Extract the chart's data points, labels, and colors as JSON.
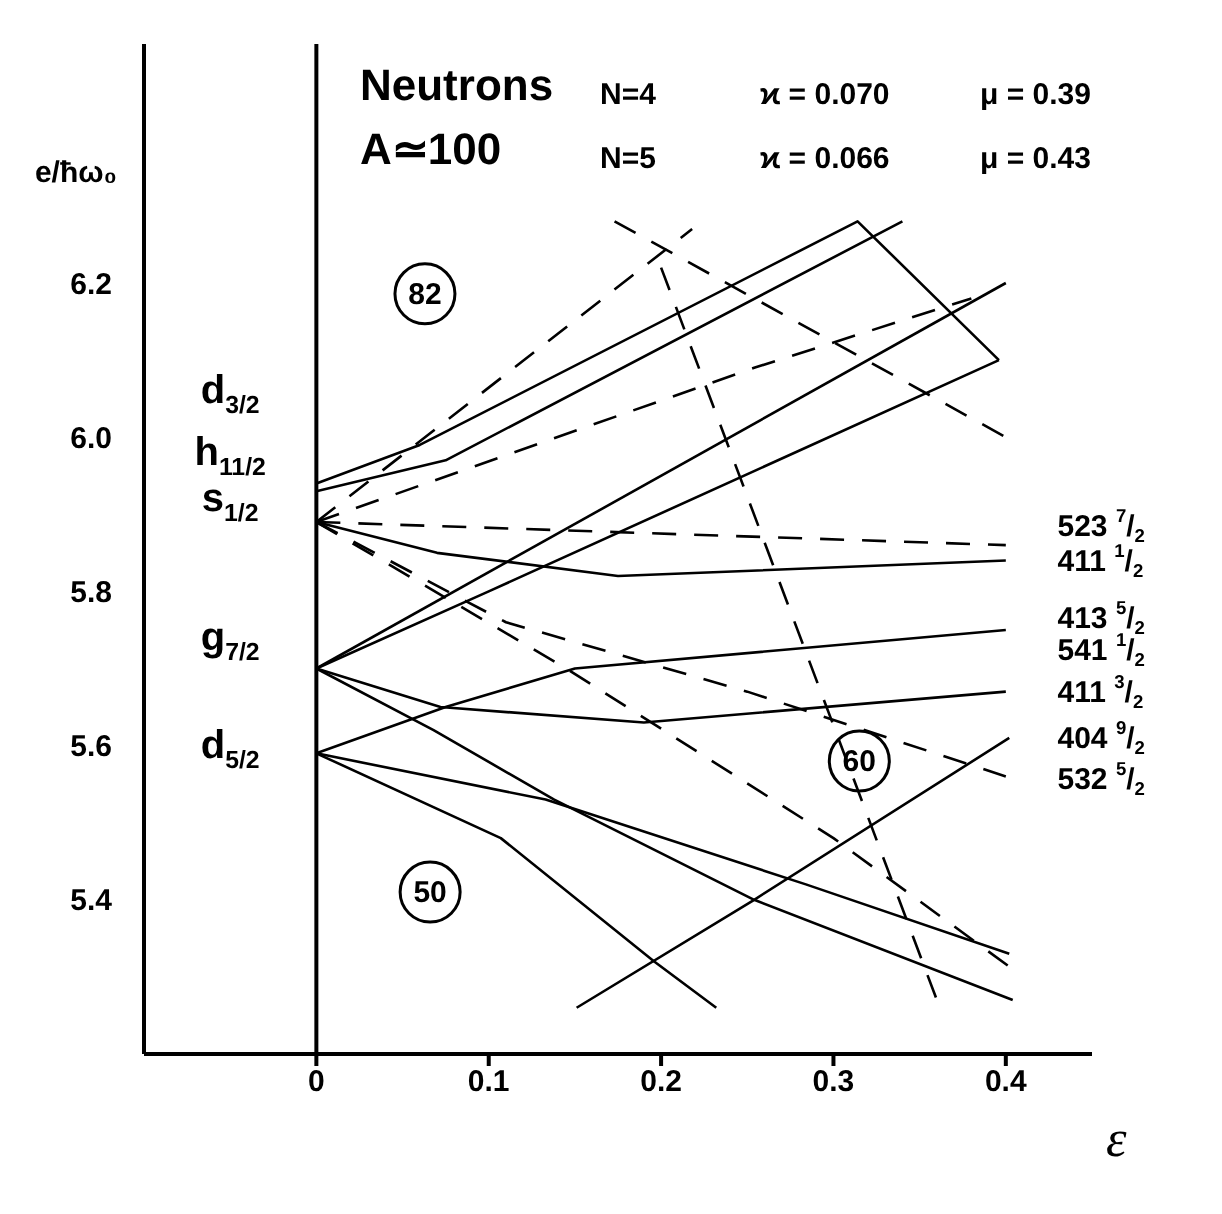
{
  "chart_data": {
    "type": "line",
    "xlabel": "ε",
    "ylabel": "e/ħω₀",
    "xlim": [
      -0.1,
      0.45
    ],
    "ylim": [
      5.2,
      6.51
    ],
    "xticks": [
      0,
      0.1,
      0.2,
      0.3,
      0.4
    ],
    "yticks": [
      5.4,
      5.6,
      5.8,
      {
        "value": 6,
        "label": "6.0"
      },
      6.2
    ],
    "marker": "none",
    "ref_lines": [
      {
        "axis": "x",
        "value": 0,
        "color": "#000000"
      }
    ],
    "series": [
      {
        "color": "#000000",
        "line_style": "solid",
        "x": [
          0,
          0.06,
          0.314,
          0.396
        ],
        "values": [
          5.94,
          5.99,
          6.28,
          6.1
        ]
      },
      {
        "color": "#000000",
        "line_style": "solid",
        "x": [
          0,
          0.075,
          0.34
        ],
        "values": [
          5.93,
          5.97,
          6.28
        ]
      },
      {
        "color": "#000000",
        "line_style": "solid",
        "x": [
          0,
          0.4
        ],
        "values": [
          5.7,
          6.2
        ]
      },
      {
        "color": "#000000",
        "line_style": "solid",
        "x": [
          0,
          0.1,
          0.396
        ],
        "values": [
          5.7,
          5.8,
          6.1
        ]
      },
      {
        "color": "#000000",
        "line_style": "solid",
        "x": [
          0,
          0.07,
          0.175,
          0.4
        ],
        "values": [
          5.89,
          5.85,
          5.82,
          5.84
        ]
      },
      {
        "color": "#000000",
        "line_style": "solid",
        "x": [
          0,
          0.075,
          0.15,
          0.4
        ],
        "values": [
          5.59,
          5.65,
          5.7,
          5.75
        ]
      },
      {
        "color": "#000000",
        "line_style": "solid",
        "x": [
          0,
          0.072,
          0.19,
          0.4
        ],
        "values": [
          5.7,
          5.65,
          5.63,
          5.67
        ]
      },
      {
        "color": "#000000",
        "line_style": "solid",
        "x": [
          0,
          0.068,
          0.138,
          0.254,
          0.404
        ],
        "values": [
          5.7,
          5.62,
          5.53,
          5.4,
          5.27
        ]
      },
      {
        "color": "#000000",
        "line_style": "solid",
        "x": [
          0,
          0.133,
          0.284,
          0.402
        ],
        "values": [
          5.59,
          5.53,
          5.42,
          5.33
        ]
      },
      {
        "color": "#000000",
        "line_style": "solid",
        "x": [
          0,
          0.107,
          0.196,
          0.232
        ],
        "values": [
          5.59,
          5.48,
          5.32,
          5.26
        ]
      },
      {
        "color": "#000000",
        "line_style": "solid",
        "x": [
          0.151,
          0.254,
          0.402
        ],
        "values": [
          5.26,
          5.4,
          5.61
        ]
      },
      {
        "color": "#000000",
        "line_style": "dashed",
        "x": [
          0,
          0.4
        ],
        "values": [
          5.89,
          5.86
        ]
      },
      {
        "color": "#000000",
        "line_style": "dashed",
        "x": [
          0,
          0.254,
          0.38
        ],
        "values": [
          5.89,
          6.09,
          6.18
        ]
      },
      {
        "color": "#000000",
        "line_style": "dashed",
        "x": [
          0,
          0.218
        ],
        "values": [
          5.89,
          6.27
        ]
      },
      {
        "color": "#000000",
        "line_style": "dashed",
        "x": [
          0,
          0.11,
          0.25,
          0.4
        ],
        "values": [
          5.89,
          5.76,
          5.67,
          5.56
        ]
      },
      {
        "color": "#000000",
        "line_style": "dashed",
        "x": [
          0,
          0.145,
          0.3,
          0.404
        ],
        "values": [
          5.89,
          5.7,
          5.48,
          5.31
        ]
      },
      {
        "color": "#000000",
        "line_style": "dashed",
        "x": [
          0.173,
          0.4
        ],
        "values": [
          6.28,
          6.0
        ]
      },
      {
        "color": "#000000",
        "line_style": "dashed",
        "x": [
          0.2,
          0.36
        ],
        "values": [
          6.22,
          5.27
        ]
      }
    ],
    "annotations": [
      "Neutrons",
      "A≃100",
      "N=4",
      "ϰ = 0.070",
      "μ = 0.39",
      "N=5",
      "ϰ = 0.066",
      "μ = 0.43",
      "d$_{3/2}$",
      "h$_{11/2}$",
      "s$_{1/2}$",
      "g$_{7/2}$",
      "d$_{5/2}$",
      "523 $^{7}$/$_{2}$",
      "411 $^{1}$/$_{2}$",
      "413 $^{5}$/$_{2}$",
      "541 $^{1}$/$_{2}$",
      "411 $^{3}$/$_{2}$",
      "404 $^{9}$/$_{2}$",
      "532 $^{5}$/$_{2}$",
      "82",
      "60",
      "50"
    ]
  }
}
